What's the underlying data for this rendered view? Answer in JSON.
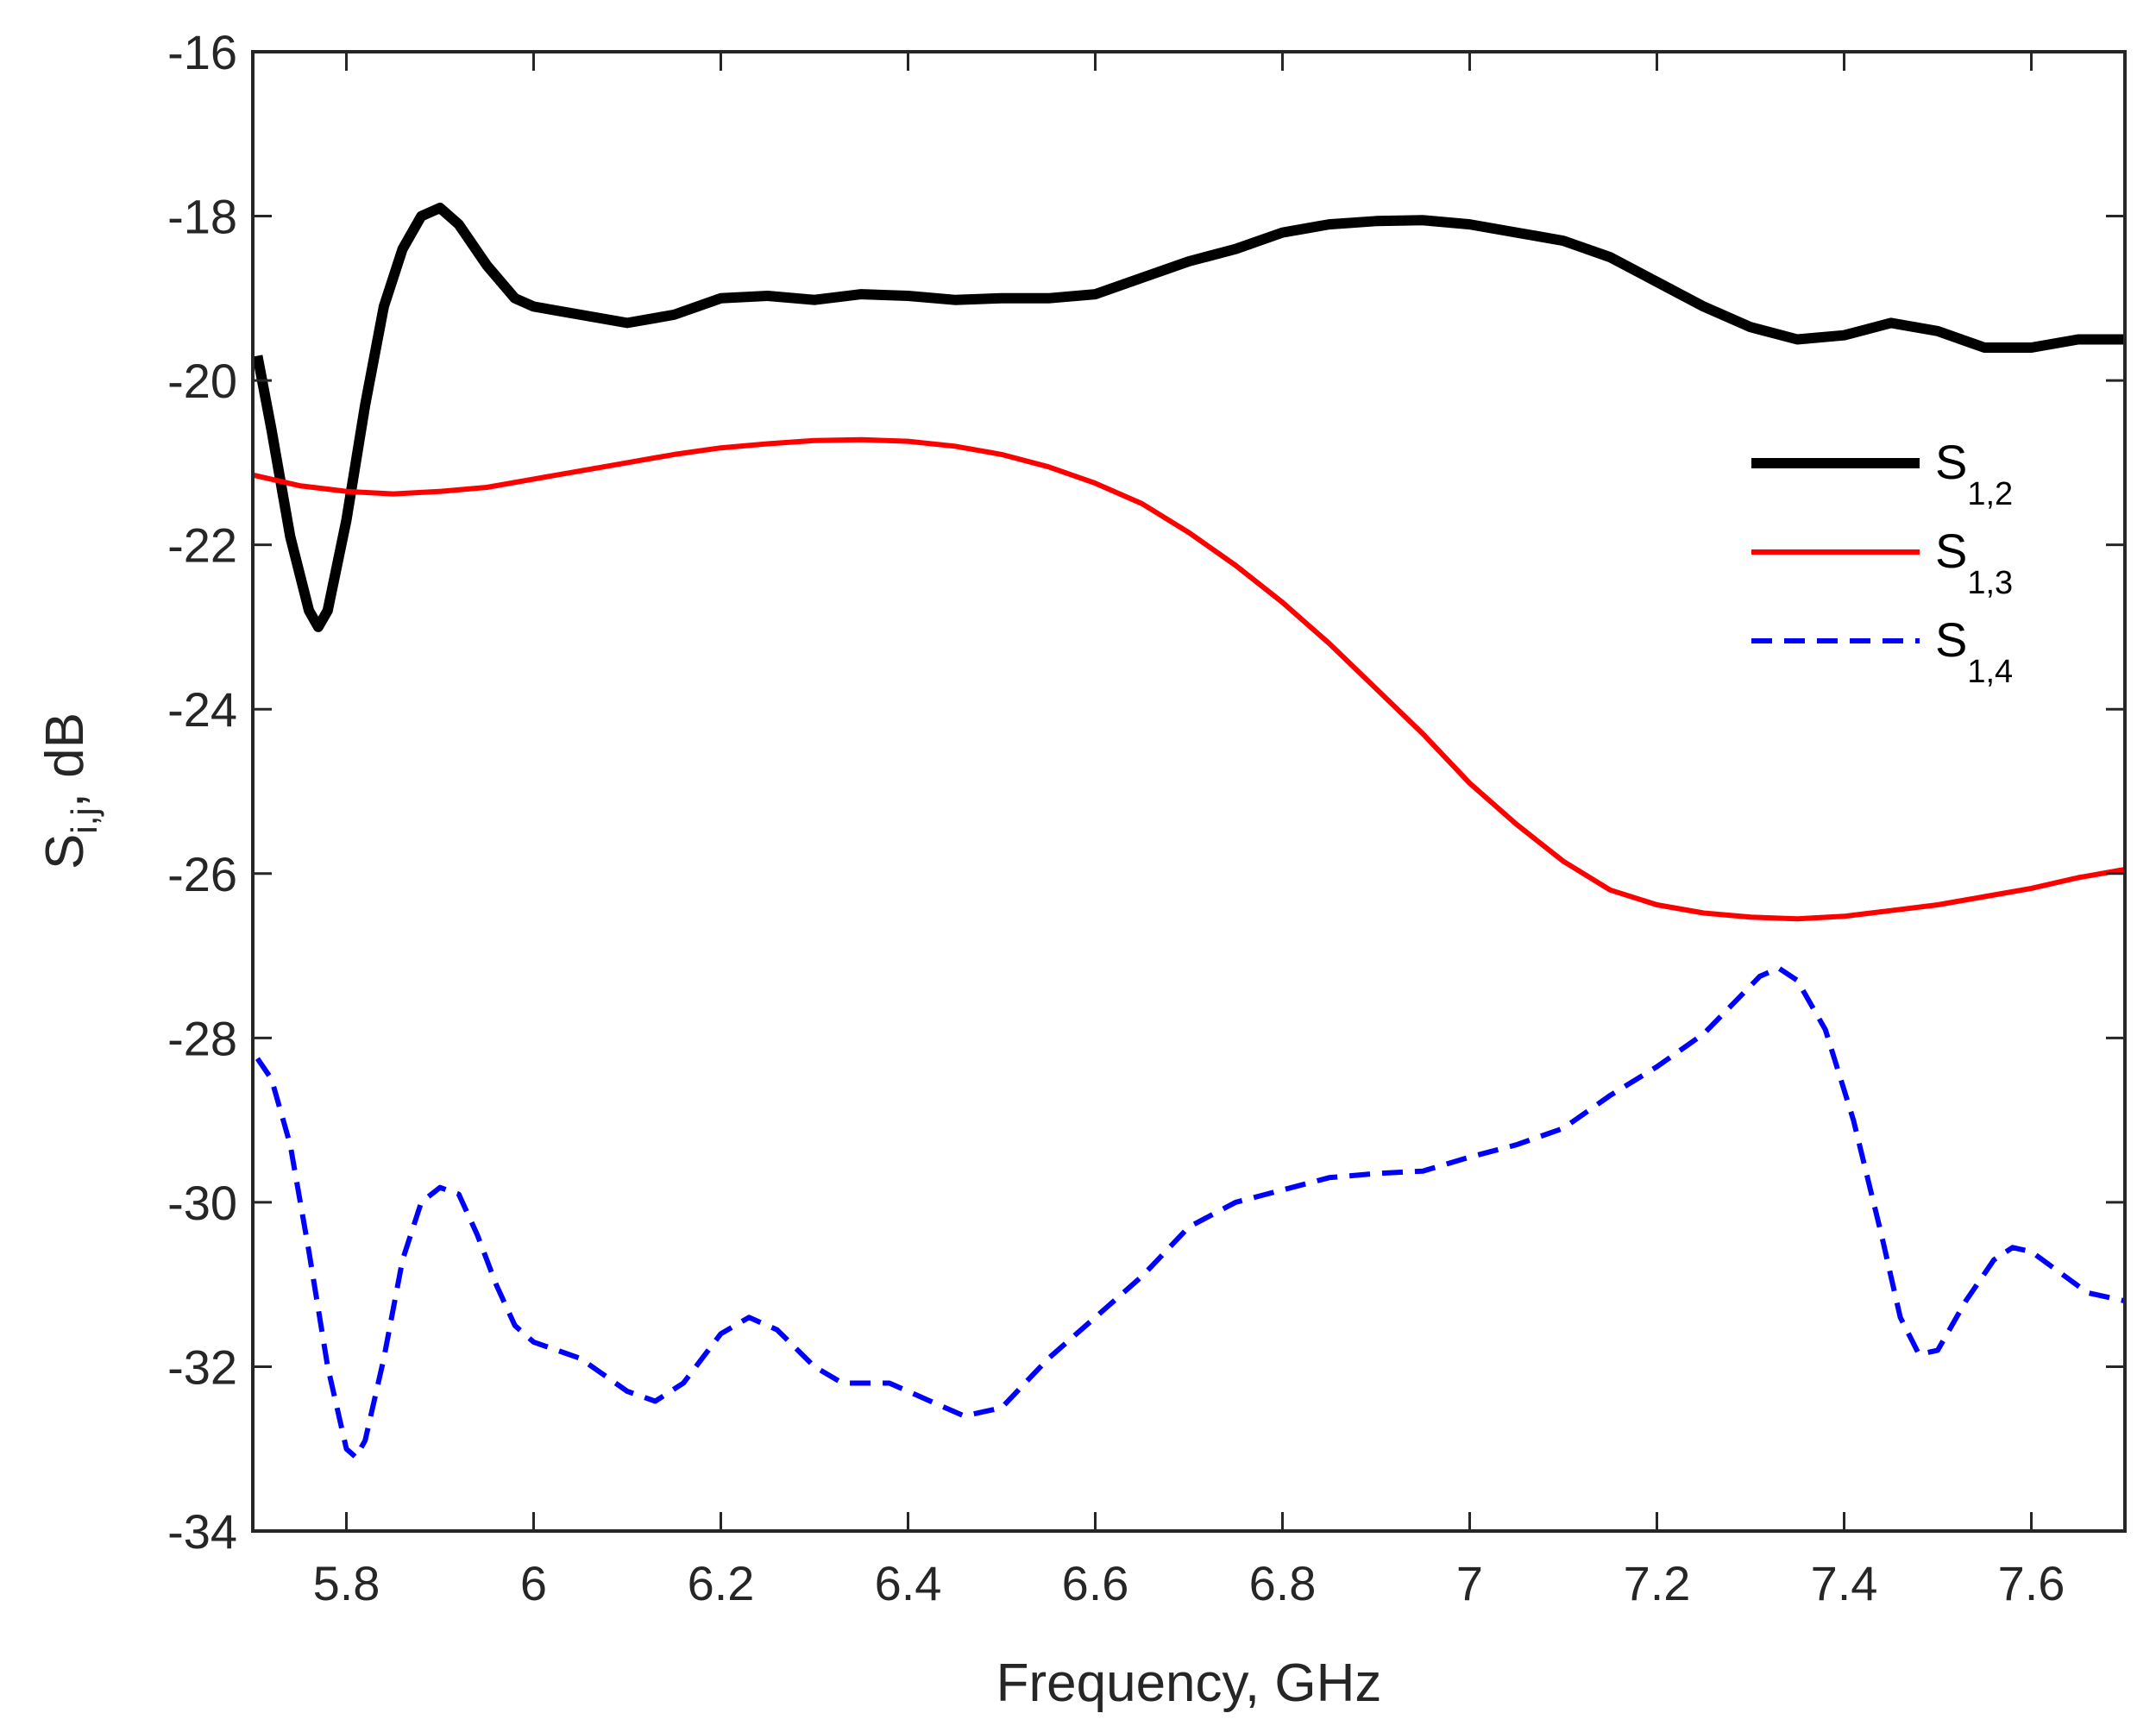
{
  "chart_data": {
    "type": "line",
    "title": "",
    "xlabel": "Frequency, GHz",
    "ylabel": {
      "main": "S",
      "sub": "i,j",
      "suffix": ", dB"
    },
    "xlim": [
      5.7,
      7.7
    ],
    "ylim": [
      -34,
      -16
    ],
    "xticks": [
      5.8,
      6.0,
      6.2,
      6.4,
      6.6,
      6.8,
      7.0,
      7.2,
      7.4,
      7.6
    ],
    "xtick_labels": [
      "5.8",
      "6",
      "6.2",
      "6.4",
      "6.6",
      "6.8",
      "7",
      "7.2",
      "7.4",
      "7.6"
    ],
    "yticks": [
      -34,
      -32,
      -30,
      -28,
      -26,
      -24,
      -22,
      -20,
      -18,
      -16
    ],
    "ytick_labels": [
      "-34",
      "-32",
      "-30",
      "-28",
      "-26",
      "-24",
      "-22",
      "-20",
      "-18",
      "-16"
    ],
    "grid": false,
    "legend_position": "upper-right",
    "series": [
      {
        "name": "S1,2",
        "legend_main": "S",
        "legend_sub": "1,2",
        "color": "#000000",
        "style": "solid",
        "weight": "thick",
        "points": [
          [
            5.705,
            -19.7
          ],
          [
            5.72,
            -20.6
          ],
          [
            5.74,
            -21.9
          ],
          [
            5.76,
            -22.8
          ],
          [
            5.77,
            -23.0
          ],
          [
            5.78,
            -22.8
          ],
          [
            5.8,
            -21.7
          ],
          [
            5.82,
            -20.3
          ],
          [
            5.84,
            -19.1
          ],
          [
            5.86,
            -18.4
          ],
          [
            5.88,
            -18.0
          ],
          [
            5.9,
            -17.9
          ],
          [
            5.92,
            -18.1
          ],
          [
            5.95,
            -18.6
          ],
          [
            5.98,
            -19.0
          ],
          [
            6.0,
            -19.1
          ],
          [
            6.05,
            -19.2
          ],
          [
            6.1,
            -19.3
          ],
          [
            6.15,
            -19.2
          ],
          [
            6.2,
            -19.0
          ],
          [
            6.25,
            -18.97
          ],
          [
            6.3,
            -19.02
          ],
          [
            6.35,
            -18.95
          ],
          [
            6.4,
            -18.97
          ],
          [
            6.45,
            -19.02
          ],
          [
            6.5,
            -19.0
          ],
          [
            6.55,
            -19.0
          ],
          [
            6.6,
            -18.95
          ],
          [
            6.65,
            -18.75
          ],
          [
            6.7,
            -18.55
          ],
          [
            6.75,
            -18.4
          ],
          [
            6.8,
            -18.2
          ],
          [
            6.85,
            -18.1
          ],
          [
            6.9,
            -18.06
          ],
          [
            6.95,
            -18.05
          ],
          [
            7.0,
            -18.1
          ],
          [
            7.05,
            -18.2
          ],
          [
            7.1,
            -18.3
          ],
          [
            7.15,
            -18.5
          ],
          [
            7.2,
            -18.8
          ],
          [
            7.25,
            -19.1
          ],
          [
            7.3,
            -19.35
          ],
          [
            7.35,
            -19.5
          ],
          [
            7.4,
            -19.45
          ],
          [
            7.45,
            -19.3
          ],
          [
            7.5,
            -19.4
          ],
          [
            7.55,
            -19.6
          ],
          [
            7.6,
            -19.6
          ],
          [
            7.65,
            -19.5
          ],
          [
            7.7,
            -19.5
          ]
        ]
      },
      {
        "name": "S1,3",
        "legend_main": "S",
        "legend_sub": "1,3",
        "color": "#ff0000",
        "style": "solid",
        "weight": "medium",
        "points": [
          [
            5.7,
            -21.15
          ],
          [
            5.75,
            -21.28
          ],
          [
            5.8,
            -21.35
          ],
          [
            5.85,
            -21.38
          ],
          [
            5.9,
            -21.35
          ],
          [
            5.95,
            -21.3
          ],
          [
            6.0,
            -21.2
          ],
          [
            6.05,
            -21.1
          ],
          [
            6.1,
            -21.0
          ],
          [
            6.15,
            -20.9
          ],
          [
            6.2,
            -20.82
          ],
          [
            6.25,
            -20.77
          ],
          [
            6.3,
            -20.73
          ],
          [
            6.35,
            -20.72
          ],
          [
            6.4,
            -20.74
          ],
          [
            6.45,
            -20.8
          ],
          [
            6.5,
            -20.9
          ],
          [
            6.55,
            -21.05
          ],
          [
            6.6,
            -21.25
          ],
          [
            6.65,
            -21.5
          ],
          [
            6.7,
            -21.85
          ],
          [
            6.75,
            -22.25
          ],
          [
            6.8,
            -22.7
          ],
          [
            6.85,
            -23.2
          ],
          [
            6.9,
            -23.75
          ],
          [
            6.95,
            -24.3
          ],
          [
            7.0,
            -24.9
          ],
          [
            7.05,
            -25.4
          ],
          [
            7.1,
            -25.85
          ],
          [
            7.15,
            -26.2
          ],
          [
            7.2,
            -26.38
          ],
          [
            7.25,
            -26.48
          ],
          [
            7.3,
            -26.53
          ],
          [
            7.35,
            -26.55
          ],
          [
            7.4,
            -26.52
          ],
          [
            7.45,
            -26.45
          ],
          [
            7.5,
            -26.38
          ],
          [
            7.55,
            -26.28
          ],
          [
            7.6,
            -26.18
          ],
          [
            7.65,
            -26.05
          ],
          [
            7.7,
            -25.95
          ]
        ]
      },
      {
        "name": "S1,4",
        "legend_main": "S",
        "legend_sub": "1,4",
        "color": "#0000ff",
        "style": "dashed",
        "weight": "medium",
        "points": [
          [
            5.705,
            -28.25
          ],
          [
            5.72,
            -28.5
          ],
          [
            5.74,
            -29.3
          ],
          [
            5.76,
            -30.6
          ],
          [
            5.78,
            -32.0
          ],
          [
            5.8,
            -33.0
          ],
          [
            5.81,
            -33.1
          ],
          [
            5.82,
            -32.9
          ],
          [
            5.84,
            -31.9
          ],
          [
            5.86,
            -30.7
          ],
          [
            5.88,
            -30.0
          ],
          [
            5.9,
            -29.82
          ],
          [
            5.92,
            -29.9
          ],
          [
            5.94,
            -30.4
          ],
          [
            5.96,
            -31.0
          ],
          [
            5.98,
            -31.5
          ],
          [
            6.0,
            -31.7
          ],
          [
            6.05,
            -31.9
          ],
          [
            6.1,
            -32.3
          ],
          [
            6.13,
            -32.42
          ],
          [
            6.16,
            -32.2
          ],
          [
            6.2,
            -31.6
          ],
          [
            6.23,
            -31.4
          ],
          [
            6.26,
            -31.55
          ],
          [
            6.3,
            -32.0
          ],
          [
            6.33,
            -32.2
          ],
          [
            6.38,
            -32.2
          ],
          [
            6.42,
            -32.4
          ],
          [
            6.46,
            -32.6
          ],
          [
            6.5,
            -32.5
          ],
          [
            6.55,
            -31.9
          ],
          [
            6.6,
            -31.4
          ],
          [
            6.65,
            -30.9
          ],
          [
            6.7,
            -30.3
          ],
          [
            6.75,
            -30.0
          ],
          [
            6.8,
            -29.85
          ],
          [
            6.85,
            -29.7
          ],
          [
            6.9,
            -29.65
          ],
          [
            6.95,
            -29.62
          ],
          [
            7.0,
            -29.45
          ],
          [
            7.05,
            -29.3
          ],
          [
            7.1,
            -29.1
          ],
          [
            7.15,
            -28.7
          ],
          [
            7.2,
            -28.35
          ],
          [
            7.25,
            -27.95
          ],
          [
            7.28,
            -27.6
          ],
          [
            7.31,
            -27.25
          ],
          [
            7.33,
            -27.15
          ],
          [
            7.35,
            -27.3
          ],
          [
            7.38,
            -27.9
          ],
          [
            7.41,
            -29.0
          ],
          [
            7.44,
            -30.4
          ],
          [
            7.46,
            -31.4
          ],
          [
            7.48,
            -31.85
          ],
          [
            7.5,
            -31.8
          ],
          [
            7.53,
            -31.2
          ],
          [
            7.56,
            -30.7
          ],
          [
            7.58,
            -30.55
          ],
          [
            7.6,
            -30.6
          ],
          [
            7.63,
            -30.85
          ],
          [
            7.66,
            -31.1
          ],
          [
            7.7,
            -31.2
          ]
        ]
      }
    ]
  }
}
